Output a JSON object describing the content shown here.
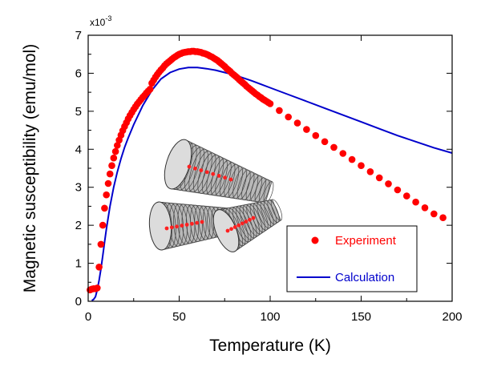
{
  "chart_data": {
    "type": "scatter",
    "xlabel": "Temperature (K)",
    "ylabel": "Magnetic susceptibility (emu/mol)",
    "y_multiplier": "x10",
    "y_multiplier_exp": "-3",
    "xlim": [
      0,
      200
    ],
    "ylim": [
      0,
      7
    ],
    "x_ticks": [
      "0",
      "50",
      "100",
      "150",
      "200"
    ],
    "y_ticks": [
      "0",
      "1",
      "2",
      "3",
      "4",
      "5",
      "6",
      "7"
    ],
    "grid": false,
    "legend_position": "bottom-right",
    "inset": "carbon nanotubes illustration",
    "series": [
      {
        "name": "Experiment",
        "kind": "scatter",
        "color": "#ff0000",
        "x": [
          1,
          2,
          3,
          4,
          5,
          6,
          7,
          8,
          9,
          10,
          11,
          12,
          13,
          14,
          15,
          16,
          17,
          18,
          19,
          20,
          21,
          22,
          23,
          24,
          25,
          26,
          27,
          28,
          29,
          30,
          31,
          32,
          33,
          34,
          35,
          36,
          37,
          38,
          39,
          40,
          41,
          42,
          43,
          44,
          45,
          46,
          47,
          48,
          49,
          50,
          51,
          52,
          53,
          54,
          55,
          56,
          57,
          58,
          59,
          60,
          61,
          62,
          63,
          64,
          65,
          66,
          67,
          68,
          69,
          70,
          71,
          72,
          73,
          74,
          75,
          76,
          77,
          78,
          79,
          80,
          81,
          82,
          83,
          84,
          85,
          86,
          87,
          88,
          89,
          90,
          91,
          92,
          93,
          94,
          95,
          96,
          97,
          98,
          99,
          100,
          105,
          110,
          115,
          120,
          125,
          130,
          135,
          140,
          145,
          150,
          155,
          160,
          165,
          170,
          175,
          180,
          185,
          190,
          195
        ],
        "y": [
          0.3,
          0.32,
          0.33,
          0.33,
          0.35,
          0.9,
          1.5,
          2.0,
          2.45,
          2.8,
          3.1,
          3.35,
          3.57,
          3.77,
          3.94,
          4.1,
          4.24,
          4.37,
          4.49,
          4.6,
          4.7,
          4.8,
          4.89,
          4.97,
          5.05,
          5.12,
          5.19,
          5.25,
          5.31,
          5.37,
          5.42,
          5.48,
          5.53,
          5.58,
          5.74,
          5.82,
          5.9,
          5.97,
          6.03,
          6.09,
          6.14,
          6.2,
          6.25,
          6.29,
          6.33,
          6.37,
          6.41,
          6.44,
          6.47,
          6.5,
          6.52,
          6.54,
          6.55,
          6.56,
          6.57,
          6.57,
          6.58,
          6.58,
          6.57,
          6.57,
          6.56,
          6.55,
          6.53,
          6.52,
          6.5,
          6.48,
          6.45,
          6.43,
          6.4,
          6.37,
          6.34,
          6.3,
          6.26,
          6.22,
          6.18,
          6.13,
          6.09,
          6.05,
          6.0,
          5.96,
          5.92,
          5.88,
          5.83,
          5.79,
          5.75,
          5.71,
          5.66,
          5.62,
          5.58,
          5.54,
          5.5,
          5.46,
          5.43,
          5.39,
          5.36,
          5.32,
          5.29,
          5.26,
          5.23,
          5.2,
          5.02,
          4.85,
          4.69,
          4.52,
          4.36,
          4.2,
          4.05,
          3.89,
          3.73,
          3.57,
          3.41,
          3.25,
          3.09,
          2.93,
          2.77,
          2.61,
          2.46,
          2.3,
          2.2
        ]
      },
      {
        "name": "Calculation",
        "kind": "line",
        "color": "#0000cc",
        "x": [
          2,
          3,
          4,
          5,
          6,
          7,
          8,
          9,
          10,
          12,
          14,
          16,
          18,
          20,
          22,
          25,
          28,
          30,
          35,
          40,
          45,
          50,
          55,
          60,
          65,
          70,
          75,
          80,
          85,
          90,
          95,
          100,
          110,
          120,
          130,
          140,
          150,
          160,
          170,
          180,
          190,
          200
        ],
        "y": [
          0.02,
          0.05,
          0.12,
          0.3,
          0.55,
          0.85,
          1.2,
          1.55,
          1.9,
          2.5,
          3.0,
          3.4,
          3.75,
          4.05,
          4.3,
          4.65,
          4.95,
          5.15,
          5.55,
          5.85,
          6.02,
          6.11,
          6.15,
          6.15,
          6.12,
          6.08,
          6.02,
          5.96,
          5.88,
          5.8,
          5.71,
          5.62,
          5.44,
          5.26,
          5.08,
          4.9,
          4.72,
          4.54,
          4.36,
          4.2,
          4.04,
          3.9
        ]
      }
    ]
  }
}
